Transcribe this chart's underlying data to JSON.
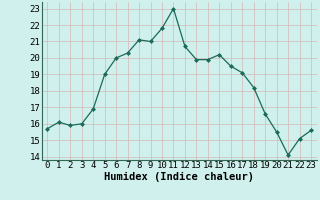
{
  "x": [
    0,
    1,
    2,
    3,
    4,
    5,
    6,
    7,
    8,
    9,
    10,
    11,
    12,
    13,
    14,
    15,
    16,
    17,
    18,
    19,
    20,
    21,
    22,
    23
  ],
  "y": [
    15.7,
    16.1,
    15.9,
    16.0,
    16.9,
    19.0,
    20.0,
    20.3,
    21.1,
    21.0,
    21.8,
    23.0,
    20.7,
    19.9,
    19.9,
    20.2,
    19.5,
    19.1,
    18.2,
    16.6,
    15.5,
    14.1,
    15.1,
    15.6
  ],
  "line_color": "#1a6b5a",
  "marker": "D",
  "marker_size": 2.0,
  "bg_color": "#cff0ec",
  "grid_color_major": "#b0b0b0",
  "grid_color_minor": "#d4b8b8",
  "xlabel": "Humidex (Indice chaleur)",
  "ylim": [
    13.8,
    23.4
  ],
  "xlim": [
    -0.5,
    23.5
  ],
  "yticks": [
    14,
    15,
    16,
    17,
    18,
    19,
    20,
    21,
    22,
    23
  ],
  "xticks": [
    0,
    1,
    2,
    3,
    4,
    5,
    6,
    7,
    8,
    9,
    10,
    11,
    12,
    13,
    14,
    15,
    16,
    17,
    18,
    19,
    20,
    21,
    22,
    23
  ],
  "tick_fontsize": 6.5,
  "xlabel_fontsize": 7.5,
  "linewidth": 0.9
}
